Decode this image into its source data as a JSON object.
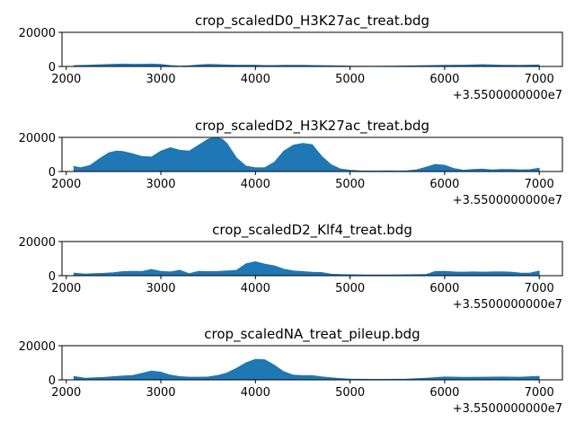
{
  "chart_data": [
    {
      "type": "area",
      "title": "crop_scaledD0_H3K27ac_treat.bdg",
      "color": "#1f77b4",
      "xlim": [
        35501950,
        35502050
      ],
      "xlim_note": "",
      "x_offset_label": "+3.5500000000e7",
      "x_ticks": [
        "2000",
        "3000",
        "4000",
        "5000",
        "6000",
        "7000"
      ],
      "y_ticks": [
        "0",
        "20000"
      ],
      "ylim": [
        0,
        20000
      ],
      "x": [
        35502080,
        35502200,
        35502300,
        35502400,
        35502500,
        35502600,
        35502700,
        35502800,
        35502900,
        35503000,
        35503100,
        35503200,
        35503300,
        35503400,
        35503500,
        35503600,
        35503700,
        35503800,
        35503900,
        35504000,
        35504100,
        35504200,
        35504300,
        35504400,
        35504500,
        35504600,
        35504700,
        35504800,
        35504900,
        35505000,
        35505200,
        35505400,
        35505600,
        35505800,
        35506000,
        35506200,
        35506400,
        35506600,
        35506800,
        35507000
      ],
      "values": [
        500,
        700,
        900,
        1100,
        1300,
        1400,
        1300,
        1300,
        1400,
        1200,
        600,
        200,
        400,
        900,
        1200,
        1100,
        900,
        800,
        800,
        800,
        600,
        600,
        700,
        700,
        700,
        600,
        500,
        400,
        300,
        200,
        100,
        200,
        300,
        500,
        700,
        800,
        1100,
        800,
        700,
        900
      ]
    },
    {
      "type": "area",
      "title": "crop_scaledD2_H3K27ac_treat.bdg",
      "color": "#1f77b4",
      "x_offset_label": "+3.5500000000e7",
      "x_ticks": [
        "2000",
        "3000",
        "4000",
        "5000",
        "6000",
        "7000"
      ],
      "y_ticks": [
        "0",
        "20000"
      ],
      "ylim": [
        0,
        20000
      ],
      "x": [
        35502080,
        35502150,
        35502250,
        35502350,
        35502450,
        35502530,
        35502600,
        35502700,
        35502800,
        35502900,
        35503000,
        35503100,
        35503200,
        35503300,
        35503400,
        35503500,
        35503580,
        35503650,
        35503700,
        35503800,
        35503900,
        35504000,
        35504100,
        35504200,
        35504300,
        35504400,
        35504500,
        35504600,
        35504700,
        35504800,
        35504900,
        35505000,
        35505100,
        35505200,
        35505300,
        35505400,
        35505500,
        35505600,
        35505700,
        35505800,
        35505900,
        35506000,
        35506100,
        35506200,
        35506300,
        35506400,
        35506500,
        35506600,
        35506700,
        35506800,
        35506900,
        35507000
      ],
      "values": [
        3000,
        2200,
        3500,
        7500,
        11000,
        12000,
        11800,
        10500,
        8800,
        8500,
        12000,
        14000,
        12500,
        12000,
        15500,
        19000,
        20000,
        19000,
        16500,
        8000,
        3200,
        2200,
        2300,
        5500,
        12000,
        15500,
        16500,
        15800,
        9000,
        4000,
        1500,
        800,
        500,
        300,
        300,
        400,
        300,
        400,
        1000,
        2500,
        4200,
        3700,
        1800,
        800,
        1200,
        1400,
        1000,
        1200,
        1200,
        1000,
        1100,
        2000
      ]
    },
    {
      "type": "area",
      "title": "crop_scaledD2_Klf4_treat.bdg",
      "color": "#1f77b4",
      "x_offset_label": "+3.5500000000e7",
      "x_ticks": [
        "2000",
        "3000",
        "4000",
        "5000",
        "6000",
        "7000"
      ],
      "y_ticks": [
        "0",
        "20000"
      ],
      "ylim": [
        0,
        20000
      ],
      "x": [
        35502080,
        35502200,
        35502300,
        35502400,
        35502500,
        35502600,
        35502700,
        35502800,
        35502900,
        35503000,
        35503100,
        35503200,
        35503300,
        35503400,
        35503500,
        35503600,
        35503700,
        35503800,
        35503900,
        35504000,
        35504100,
        35504200,
        35504300,
        35504400,
        35504500,
        35504600,
        35504700,
        35504800,
        35504900,
        35505000,
        35505200,
        35505400,
        35505600,
        35505800,
        35505900,
        35506000,
        35506100,
        35506200,
        35506300,
        35506400,
        35506500,
        35506600,
        35506700,
        35506800,
        35506900,
        35507000
      ],
      "values": [
        1500,
        1000,
        1200,
        1400,
        1800,
        2400,
        2600,
        2500,
        3700,
        2600,
        2200,
        3200,
        1200,
        2600,
        2400,
        2500,
        2800,
        3200,
        7000,
        8200,
        6800,
        5800,
        3800,
        2800,
        2400,
        2000,
        1900,
        900,
        700,
        600,
        500,
        500,
        600,
        700,
        2500,
        2600,
        2200,
        2100,
        2200,
        2100,
        2200,
        2300,
        2100,
        1600,
        1500,
        2800
      ]
    },
    {
      "type": "area",
      "title": "crop_scaledNA_treat_pileup.bdg",
      "color": "#1f77b4",
      "x_offset_label": "+3.5500000000e7",
      "x_ticks": [
        "2000",
        "3000",
        "4000",
        "5000",
        "6000",
        "7000"
      ],
      "y_ticks": [
        "0",
        "20000"
      ],
      "ylim": [
        0,
        20000
      ],
      "x": [
        35502080,
        35502200,
        35502300,
        35502400,
        35502500,
        35502600,
        35502700,
        35502800,
        35502900,
        35503000,
        35503100,
        35503200,
        35503300,
        35503400,
        35503500,
        35503600,
        35503700,
        35503800,
        35503900,
        35504000,
        35504100,
        35504200,
        35504300,
        35504400,
        35504500,
        35504600,
        35504700,
        35504800,
        35504900,
        35505000,
        35505200,
        35505400,
        35505600,
        35505800,
        35506000,
        35506200,
        35506400,
        35506600,
        35506800,
        35507000
      ],
      "values": [
        2000,
        1000,
        1200,
        1400,
        1900,
        2300,
        2600,
        3800,
        5200,
        4500,
        2800,
        1900,
        1600,
        1600,
        1700,
        2600,
        4000,
        6800,
        10000,
        12000,
        11800,
        8600,
        4800,
        2800,
        2500,
        2500,
        1800,
        1200,
        800,
        500,
        300,
        300,
        500,
        1000,
        1700,
        1500,
        1600,
        1700,
        1600,
        2100
      ]
    }
  ]
}
